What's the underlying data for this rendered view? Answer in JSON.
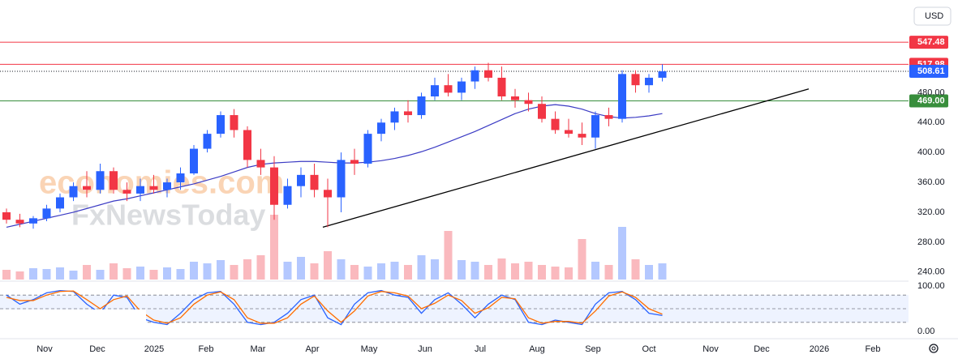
{
  "chart_data": {
    "type": "candlestick",
    "currency": "USD",
    "watermark": [
      "economies.com",
      "FxNewsToday"
    ],
    "ylim": [
      230,
      604
    ],
    "yticks": [
      {
        "value": 240,
        "label": "240.00"
      },
      {
        "value": 280,
        "label": "280.00"
      },
      {
        "value": 320,
        "label": "320.00"
      },
      {
        "value": 360,
        "label": "360.00"
      },
      {
        "value": 400,
        "label": "400.00"
      },
      {
        "value": 440,
        "label": "440.00"
      },
      {
        "value": 480,
        "label": "480.00"
      }
    ],
    "up_color": "#2962ff",
    "down_color": "#f23645",
    "ohlc": [
      [
        320,
        325,
        305,
        310
      ],
      [
        310,
        318,
        300,
        305
      ],
      [
        305,
        315,
        298,
        312
      ],
      [
        312,
        330,
        308,
        325
      ],
      [
        325,
        345,
        320,
        340
      ],
      [
        340,
        360,
        335,
        355
      ],
      [
        355,
        375,
        340,
        350
      ],
      [
        350,
        385,
        345,
        375
      ],
      [
        375,
        380,
        345,
        350
      ],
      [
        350,
        360,
        335,
        345
      ],
      [
        345,
        365,
        335,
        355
      ],
      [
        355,
        370,
        345,
        350
      ],
      [
        350,
        365,
        340,
        360
      ],
      [
        360,
        380,
        350,
        372
      ],
      [
        372,
        410,
        370,
        405
      ],
      [
        405,
        430,
        400,
        425
      ],
      [
        425,
        455,
        420,
        450
      ],
      [
        450,
        458,
        420,
        430
      ],
      [
        430,
        435,
        380,
        390
      ],
      [
        390,
        405,
        370,
        380
      ],
      [
        380,
        395,
        310,
        330
      ],
      [
        330,
        365,
        325,
        355
      ],
      [
        355,
        380,
        340,
        370
      ],
      [
        370,
        385,
        340,
        350
      ],
      [
        350,
        365,
        300,
        340
      ],
      [
        340,
        400,
        320,
        390
      ],
      [
        390,
        405,
        370,
        385
      ],
      [
        385,
        430,
        380,
        425
      ],
      [
        425,
        445,
        415,
        440
      ],
      [
        440,
        460,
        430,
        455
      ],
      [
        455,
        470,
        440,
        450
      ],
      [
        450,
        480,
        445,
        475
      ],
      [
        475,
        500,
        470,
        490
      ],
      [
        490,
        505,
        475,
        480
      ],
      [
        480,
        500,
        470,
        495
      ],
      [
        495,
        515,
        485,
        510
      ],
      [
        510,
        520,
        495,
        500
      ],
      [
        500,
        515,
        470,
        475
      ],
      [
        475,
        485,
        460,
        470
      ],
      [
        470,
        480,
        455,
        465
      ],
      [
        465,
        475,
        440,
        445
      ],
      [
        445,
        455,
        425,
        430
      ],
      [
        430,
        445,
        420,
        425
      ],
      [
        425,
        440,
        410,
        420
      ],
      [
        420,
        455,
        405,
        450
      ],
      [
        450,
        460,
        435,
        445
      ],
      [
        445,
        510,
        440,
        505
      ],
      [
        505,
        510,
        480,
        490
      ],
      [
        490,
        505,
        480,
        500
      ],
      [
        500,
        518,
        495,
        508.61
      ]
    ],
    "moving_average": {
      "color": "#3b3bc4",
      "values": [
        300,
        304,
        308,
        312,
        316,
        320,
        325,
        330,
        335,
        338,
        342,
        346,
        350,
        354,
        358,
        363,
        368,
        374,
        380,
        384,
        386,
        387,
        388,
        388,
        387,
        386,
        386,
        387,
        389,
        392,
        396,
        401,
        407,
        414,
        421,
        428,
        436,
        444,
        452,
        458,
        462,
        464,
        462,
        458,
        452,
        448,
        446,
        447,
        449,
        452
      ]
    },
    "volume": [
      12,
      10,
      14,
      13,
      15,
      11,
      18,
      12,
      20,
      14,
      16,
      12,
      15,
      13,
      22,
      20,
      24,
      18,
      25,
      30,
      80,
      22,
      28,
      20,
      35,
      25,
      18,
      16,
      20,
      22,
      18,
      30,
      25,
      60,
      24,
      22,
      18,
      26,
      20,
      22,
      18,
      16,
      15,
      50,
      22,
      18,
      65,
      25,
      18,
      20
    ],
    "levels": [
      {
        "value": 547.48,
        "label": "547.48",
        "color": "#f23645",
        "style": "solid"
      },
      {
        "value": 517.98,
        "label": "517.98",
        "color": "#f23645",
        "style": "solid"
      },
      {
        "value": 508.61,
        "label": "508.61",
        "color": "#2962ff",
        "style": "dotted"
      },
      {
        "value": 469,
        "label": "469.00",
        "color": "#388e3c",
        "style": "solid"
      }
    ],
    "trendline": {
      "from": 300,
      "to": 485,
      "color": "#000000"
    },
    "stochastic": {
      "ylim": [
        0,
        100
      ],
      "yticks": [
        {
          "value": 0,
          "label": "0.00"
        },
        {
          "value": 100,
          "label": "100.00"
        }
      ],
      "bands": [
        20,
        50,
        80
      ],
      "series": [
        {
          "color": "#2962ff",
          "values": [
            80,
            60,
            70,
            85,
            90,
            88,
            60,
            40,
            80,
            75,
            30,
            20,
            15,
            40,
            70,
            85,
            88,
            60,
            20,
            15,
            20,
            40,
            70,
            80,
            30,
            15,
            60,
            85,
            90,
            80,
            75,
            40,
            70,
            85,
            60,
            30,
            60,
            80,
            70,
            20,
            15,
            25,
            20,
            15,
            60,
            85,
            88,
            70,
            40,
            35
          ]
        },
        {
          "color": "#ff6d00",
          "values": [
            75,
            68,
            68,
            80,
            88,
            89,
            70,
            50,
            70,
            78,
            45,
            25,
            18,
            30,
            60,
            80,
            87,
            70,
            30,
            18,
            18,
            30,
            60,
            78,
            45,
            20,
            45,
            78,
            88,
            85,
            78,
            50,
            62,
            80,
            68,
            40,
            52,
            75,
            72,
            30,
            18,
            22,
            22,
            18,
            45,
            78,
            87,
            75,
            50,
            38
          ]
        }
      ]
    },
    "x_axis_labels": [
      "Nov",
      "Dec",
      "2025",
      "Feb",
      "Mar",
      "Apr",
      "May",
      "Jun",
      "Jul",
      "Aug",
      "Sep",
      "Oct",
      "Nov",
      "Dec",
      "2026",
      "Feb"
    ]
  }
}
